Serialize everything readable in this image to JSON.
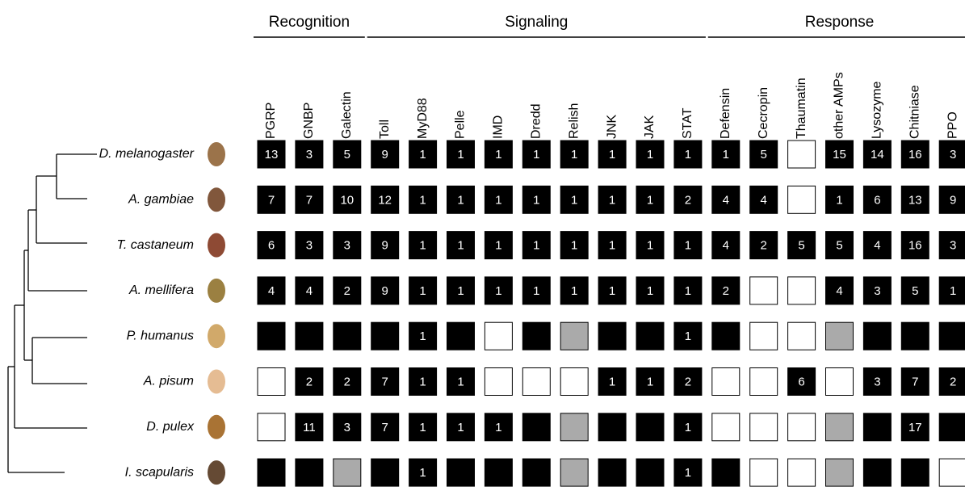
{
  "groups": [
    {
      "label": "Recognition",
      "columns": [
        "PGRP",
        "GNBP",
        "Galectin"
      ]
    },
    {
      "label": "Signaling",
      "columns": [
        "Toll",
        "MyD88",
        "Pelle",
        "IMD",
        "Dredd",
        "Relish",
        "JNK",
        "JAK",
        "STAT"
      ]
    },
    {
      "label": "Response",
      "columns": [
        "Defensin",
        "Cecropin",
        "Thaumatin",
        "other AMPs",
        "Lysozyme",
        "Chitniase",
        "PPO"
      ]
    }
  ],
  "rows": [
    {
      "species": "D. melanogaster",
      "cells": [
        {
          "fill": "#000",
          "label": "13"
        },
        {
          "fill": "#000",
          "label": "3"
        },
        {
          "fill": "#000",
          "label": "5"
        },
        {
          "fill": "#000",
          "label": "9"
        },
        {
          "fill": "#000",
          "label": "1"
        },
        {
          "fill": "#000",
          "label": "1"
        },
        {
          "fill": "#000",
          "label": "1"
        },
        {
          "fill": "#000",
          "label": "1"
        },
        {
          "fill": "#000",
          "label": "1"
        },
        {
          "fill": "#000",
          "label": "1"
        },
        {
          "fill": "#000",
          "label": "1"
        },
        {
          "fill": "#000",
          "label": "1"
        },
        {
          "fill": "#000",
          "label": "1"
        },
        {
          "fill": "#000",
          "label": "5"
        },
        {
          "fill": "#fff"
        },
        {
          "fill": "#000",
          "label": "15"
        },
        {
          "fill": "#000",
          "label": "14"
        },
        {
          "fill": "#000",
          "label": "16"
        },
        {
          "fill": "#000",
          "label": "3"
        }
      ]
    },
    {
      "species": "A. gambiae",
      "cells": [
        {
          "fill": "#000",
          "label": "7"
        },
        {
          "fill": "#000",
          "label": "7"
        },
        {
          "fill": "#000",
          "label": "10"
        },
        {
          "fill": "#000",
          "label": "12"
        },
        {
          "fill": "#000",
          "label": "1"
        },
        {
          "fill": "#000",
          "label": "1"
        },
        {
          "fill": "#000",
          "label": "1"
        },
        {
          "fill": "#000",
          "label": "1"
        },
        {
          "fill": "#000",
          "label": "1"
        },
        {
          "fill": "#000",
          "label": "1"
        },
        {
          "fill": "#000",
          "label": "1"
        },
        {
          "fill": "#000",
          "label": "2"
        },
        {
          "fill": "#000",
          "label": "4"
        },
        {
          "fill": "#000",
          "label": "4"
        },
        {
          "fill": "#fff"
        },
        {
          "fill": "#000",
          "label": "1"
        },
        {
          "fill": "#000",
          "label": "6"
        },
        {
          "fill": "#000",
          "label": "13"
        },
        {
          "fill": "#000",
          "label": "9"
        }
      ]
    },
    {
      "species": "T. castaneum",
      "cells": [
        {
          "fill": "#000",
          "label": "6"
        },
        {
          "fill": "#000",
          "label": "3"
        },
        {
          "fill": "#000",
          "label": "3"
        },
        {
          "fill": "#000",
          "label": "9"
        },
        {
          "fill": "#000",
          "label": "1"
        },
        {
          "fill": "#000",
          "label": "1"
        },
        {
          "fill": "#000",
          "label": "1"
        },
        {
          "fill": "#000",
          "label": "1"
        },
        {
          "fill": "#000",
          "label": "1"
        },
        {
          "fill": "#000",
          "label": "1"
        },
        {
          "fill": "#000",
          "label": "1"
        },
        {
          "fill": "#000",
          "label": "1"
        },
        {
          "fill": "#000",
          "label": "4"
        },
        {
          "fill": "#000",
          "label": "2"
        },
        {
          "fill": "#000",
          "label": "5"
        },
        {
          "fill": "#000",
          "label": "5"
        },
        {
          "fill": "#000",
          "label": "4"
        },
        {
          "fill": "#000",
          "label": "16"
        },
        {
          "fill": "#000",
          "label": "3"
        }
      ]
    },
    {
      "species": "A. mellifera",
      "cells": [
        {
          "fill": "#000",
          "label": "4"
        },
        {
          "fill": "#000",
          "label": "4"
        },
        {
          "fill": "#000",
          "label": "2"
        },
        {
          "fill": "#000",
          "label": "9"
        },
        {
          "fill": "#000",
          "label": "1"
        },
        {
          "fill": "#000",
          "label": "1"
        },
        {
          "fill": "#000",
          "label": "1"
        },
        {
          "fill": "#000",
          "label": "1"
        },
        {
          "fill": "#000",
          "label": "1"
        },
        {
          "fill": "#000",
          "label": "1"
        },
        {
          "fill": "#000",
          "label": "1"
        },
        {
          "fill": "#000",
          "label": "1"
        },
        {
          "fill": "#000",
          "label": "2"
        },
        {
          "fill": "#fff"
        },
        {
          "fill": "#fff"
        },
        {
          "fill": "#000",
          "label": "4"
        },
        {
          "fill": "#000",
          "label": "3"
        },
        {
          "fill": "#000",
          "label": "5"
        },
        {
          "fill": "#000",
          "label": "1"
        }
      ]
    },
    {
      "species": "P. humanus",
      "cells": [
        {
          "fill": "#000"
        },
        {
          "fill": "#000"
        },
        {
          "fill": "#000"
        },
        {
          "fill": "#000"
        },
        {
          "fill": "#000",
          "label": "1"
        },
        {
          "fill": "#000"
        },
        {
          "fill": "#fff"
        },
        {
          "fill": "#000"
        },
        {
          "fill": "#aaa"
        },
        {
          "fill": "#000"
        },
        {
          "fill": "#000"
        },
        {
          "fill": "#000",
          "label": "1"
        },
        {
          "fill": "#000"
        },
        {
          "fill": "#fff"
        },
        {
          "fill": "#fff"
        },
        {
          "fill": "#aaa"
        },
        {
          "fill": "#000"
        },
        {
          "fill": "#000"
        },
        {
          "fill": "#000"
        }
      ]
    },
    {
      "species": "A. pisum",
      "cells": [
        {
          "fill": "#fff"
        },
        {
          "fill": "#000",
          "label": "2"
        },
        {
          "fill": "#000",
          "label": "2"
        },
        {
          "fill": "#000",
          "label": "7"
        },
        {
          "fill": "#000",
          "label": "1"
        },
        {
          "fill": "#000",
          "label": "1"
        },
        {
          "fill": "#fff"
        },
        {
          "fill": "#fff"
        },
        {
          "fill": "#fff"
        },
        {
          "fill": "#000",
          "label": "1"
        },
        {
          "fill": "#000",
          "label": "1"
        },
        {
          "fill": "#000",
          "label": "2"
        },
        {
          "fill": "#fff"
        },
        {
          "fill": "#fff"
        },
        {
          "fill": "#000",
          "label": "6"
        },
        {
          "fill": "#fff"
        },
        {
          "fill": "#000",
          "label": "3"
        },
        {
          "fill": "#000",
          "label": "7"
        },
        {
          "fill": "#000",
          "label": "2"
        }
      ]
    },
    {
      "species": "D. pulex",
      "cells": [
        {
          "fill": "#fff"
        },
        {
          "fill": "#000",
          "label": "11"
        },
        {
          "fill": "#000",
          "label": "3"
        },
        {
          "fill": "#000",
          "label": "7"
        },
        {
          "fill": "#000",
          "label": "1"
        },
        {
          "fill": "#000",
          "label": "1"
        },
        {
          "fill": "#000",
          "label": "1"
        },
        {
          "fill": "#000"
        },
        {
          "fill": "#aaa"
        },
        {
          "fill": "#000"
        },
        {
          "fill": "#000"
        },
        {
          "fill": "#000",
          "label": "1"
        },
        {
          "fill": "#fff"
        },
        {
          "fill": "#fff"
        },
        {
          "fill": "#fff"
        },
        {
          "fill": "#aaa"
        },
        {
          "fill": "#000"
        },
        {
          "fill": "#000",
          "label": "17"
        },
        {
          "fill": "#000"
        }
      ]
    },
    {
      "species": "I. scapularis",
      "cells": [
        {
          "fill": "#000"
        },
        {
          "fill": "#000"
        },
        {
          "fill": "#aaa"
        },
        {
          "fill": "#000"
        },
        {
          "fill": "#000",
          "label": "1"
        },
        {
          "fill": "#000"
        },
        {
          "fill": "#000"
        },
        {
          "fill": "#000"
        },
        {
          "fill": "#aaa"
        },
        {
          "fill": "#000"
        },
        {
          "fill": "#000"
        },
        {
          "fill": "#000",
          "label": "1"
        },
        {
          "fill": "#000"
        },
        {
          "fill": "#fff"
        },
        {
          "fill": "#fff"
        },
        {
          "fill": "#aaa"
        },
        {
          "fill": "#000"
        },
        {
          "fill": "#000"
        },
        {
          "fill": "#fff"
        }
      ]
    }
  ]
}
